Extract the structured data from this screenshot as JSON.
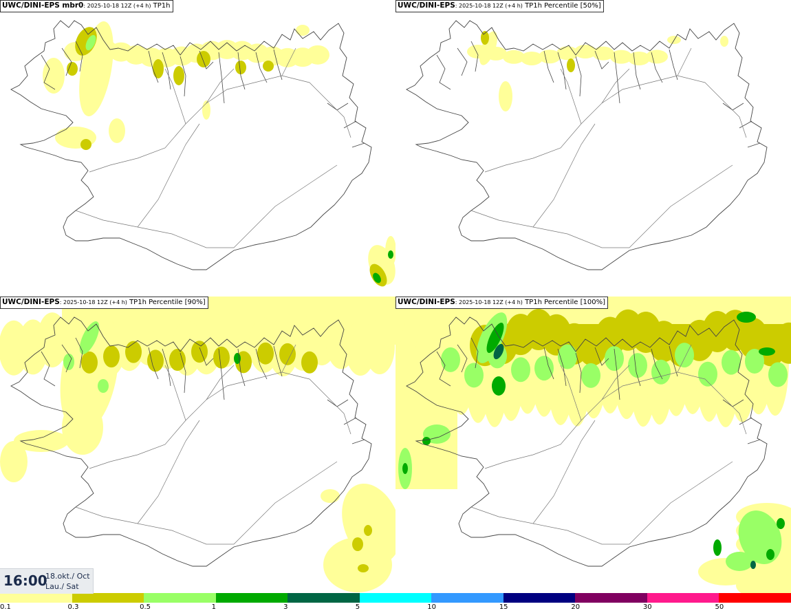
{
  "panels": [
    {
      "model": "UWC/DINI-EPS mbr0",
      "run": ": 2025-10-18 12Z (+4 h)",
      "field": " TP1h",
      "precip_level": "low"
    },
    {
      "model": "UWC/DINI-EPS",
      "run": ": 2025-10-18 12Z (+4 h)",
      "field": " TP1h Percentile [50%]",
      "precip_level": "lowest"
    },
    {
      "model": "UWC/DINI-EPS",
      "run": ": 2025-10-18 12Z (+4 h)",
      "field": " TP1h Percentile [90%]",
      "precip_level": "medium"
    },
    {
      "model": "UWC/DINI-EPS",
      "run": ": 2025-10-18 12Z (+4 h)",
      "field": " TP1h Percentile [100%]",
      "precip_level": "high"
    }
  ],
  "time": {
    "hour": "16:00",
    "date_line1": "18.okt./ Oct",
    "date_line2": "Lau./ Sat"
  },
  "legend": {
    "colors": [
      "#ffff99",
      "#cccc00",
      "#99ff66",
      "#00aa00",
      "#006644",
      "#00ffff",
      "#3399ff",
      "#000080",
      "#800060",
      "#ff1a8c",
      "#ff0000"
    ],
    "ticks": [
      "0.1",
      "0.3",
      "0.5",
      "1",
      "3",
      "5",
      "10",
      "15",
      "20",
      "30",
      "50"
    ]
  }
}
